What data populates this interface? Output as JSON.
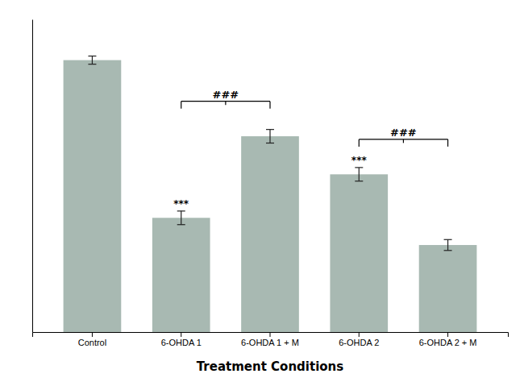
{
  "chart_data": {
    "type": "bar",
    "categories": [
      "Control",
      "6-OHDA 1",
      "6-OHDA 1 + M",
      "6-OHDA 2",
      "6-OHDA 2 + M"
    ],
    "values": [
      100,
      42,
      72,
      58,
      32
    ],
    "errors": [
      1.5,
      2.5,
      2.5,
      2.5,
      2.0
    ],
    "color": "#a8b9b2",
    "xlabel": "Treatment Conditions",
    "ylim": [
      0,
      115
    ],
    "tick_labels": "x",
    "grid": false,
    "annotations": [
      {
        "text": "***",
        "x": "6-OHDA 1"
      },
      {
        "text": "***",
        "x": "6-OHDA 2"
      },
      {
        "text": "###",
        "x": [
          "6-OHDA 1",
          "6-OHDA 1 + M"
        ]
      },
      {
        "text": "###",
        "x": [
          "6-OHDA 2",
          "6-OHDA 2 + M"
        ]
      }
    ]
  }
}
